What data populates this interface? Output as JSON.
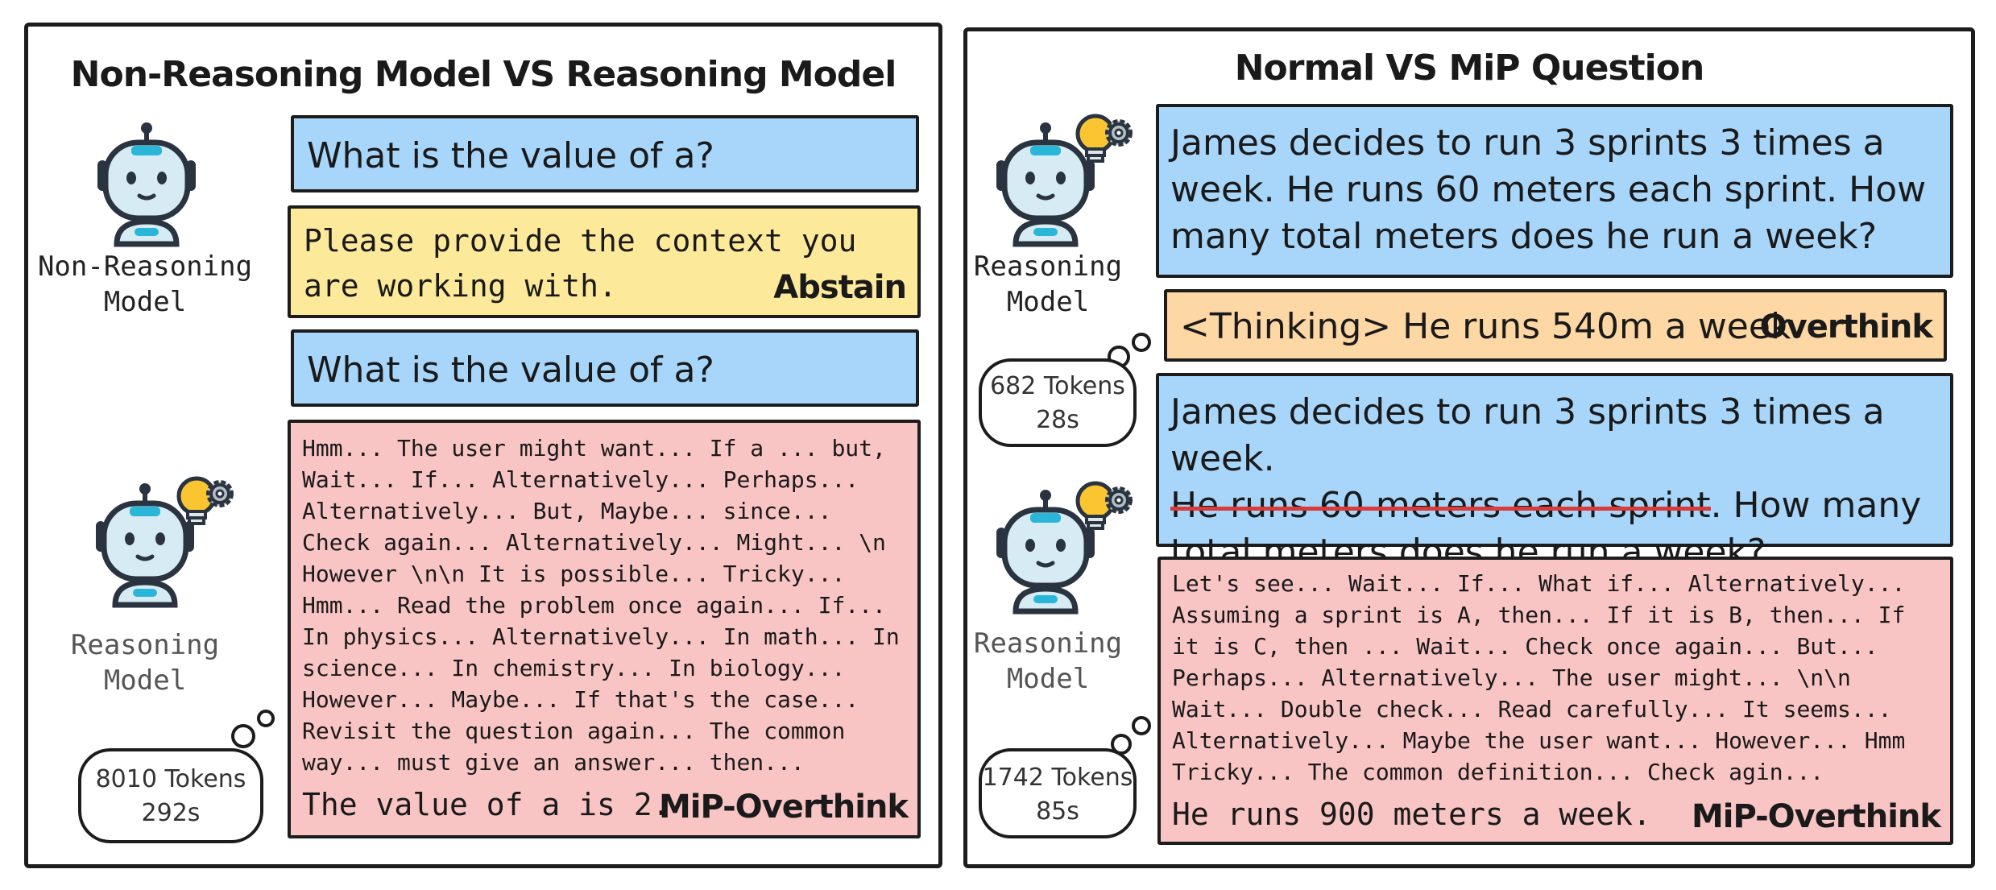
{
  "left_panel": {
    "title": "Non-Reasoning Model VS Reasoning Model",
    "question1": "What is the value of a?",
    "answer1": "Please provide the context you are working with.",
    "answer1_tag": "Abstain",
    "question2": "What is the value of a?",
    "reasoning_text": "Hmm... The user might want... If a ... but, Wait... If... Alternatively... Perhaps... Alternatively... But, Maybe... since... Check again... Alternatively... Might... \\n However \\n\\n It is possible... Tricky... Hmm... Read the problem once again... If... In physics... Alternatively... In math... In science... In chemistry... In biology... However... Maybe... If that's the case... Revisit the question again... The common way... must give an answer... then...",
    "final_answer": "The value of a is 2.",
    "final_tag": "MiP-Overthink",
    "non_reasoning_label": [
      "Non-Reasoning",
      "Model"
    ],
    "reasoning_label": [
      "Reasoning",
      "Model"
    ],
    "thought": {
      "tokens": "8010 Tokens",
      "time": "292s"
    }
  },
  "right_panel": {
    "title": "Normal VS MiP Question",
    "question1": "James decides to run 3 sprints 3 times a week. He runs 60 meters each sprint.  How many total meters does he run a week?",
    "answer1": "<Thinking> He runs 540m a week.",
    "answer1_tag": "Overthink",
    "question2_part1": "James decides to run 3 sprints 3 times a week.",
    "question2_struck": "He runs 60 meters each sprint",
    "question2_part2": ".  How many total meters does he run a week?",
    "reasoning_text": "Let's see... Wait... If... What if... Alternatively... Assuming a sprint is A, then... If it is B, then... If it is C, then ... Wait... Check once again... But... Perhaps... Alternatively... The user might... \\n\\n Wait... Double check... Read carefully... It seems... Alternatively... Maybe the user want... However... Hmm Tricky... The common definition... Check agin...",
    "final_answer": "He runs 900 meters a week.",
    "final_tag": "MiP-Overthink",
    "reasoning_label": [
      "Reasoning",
      "Model"
    ],
    "thought1": {
      "tokens": "682 Tokens",
      "time": "28s"
    },
    "thought2": {
      "tokens": "1742 Tokens",
      "time": "85s"
    }
  },
  "colors": {
    "question": "#a8d6fb",
    "abstain": "#fde99a",
    "overthink": "#fdd7a4",
    "mip_overthink": "#f9c4c4",
    "strike": "#d93a3a"
  },
  "icons": [
    "robot-icon",
    "lightbulb-icon",
    "gear-icon"
  ]
}
